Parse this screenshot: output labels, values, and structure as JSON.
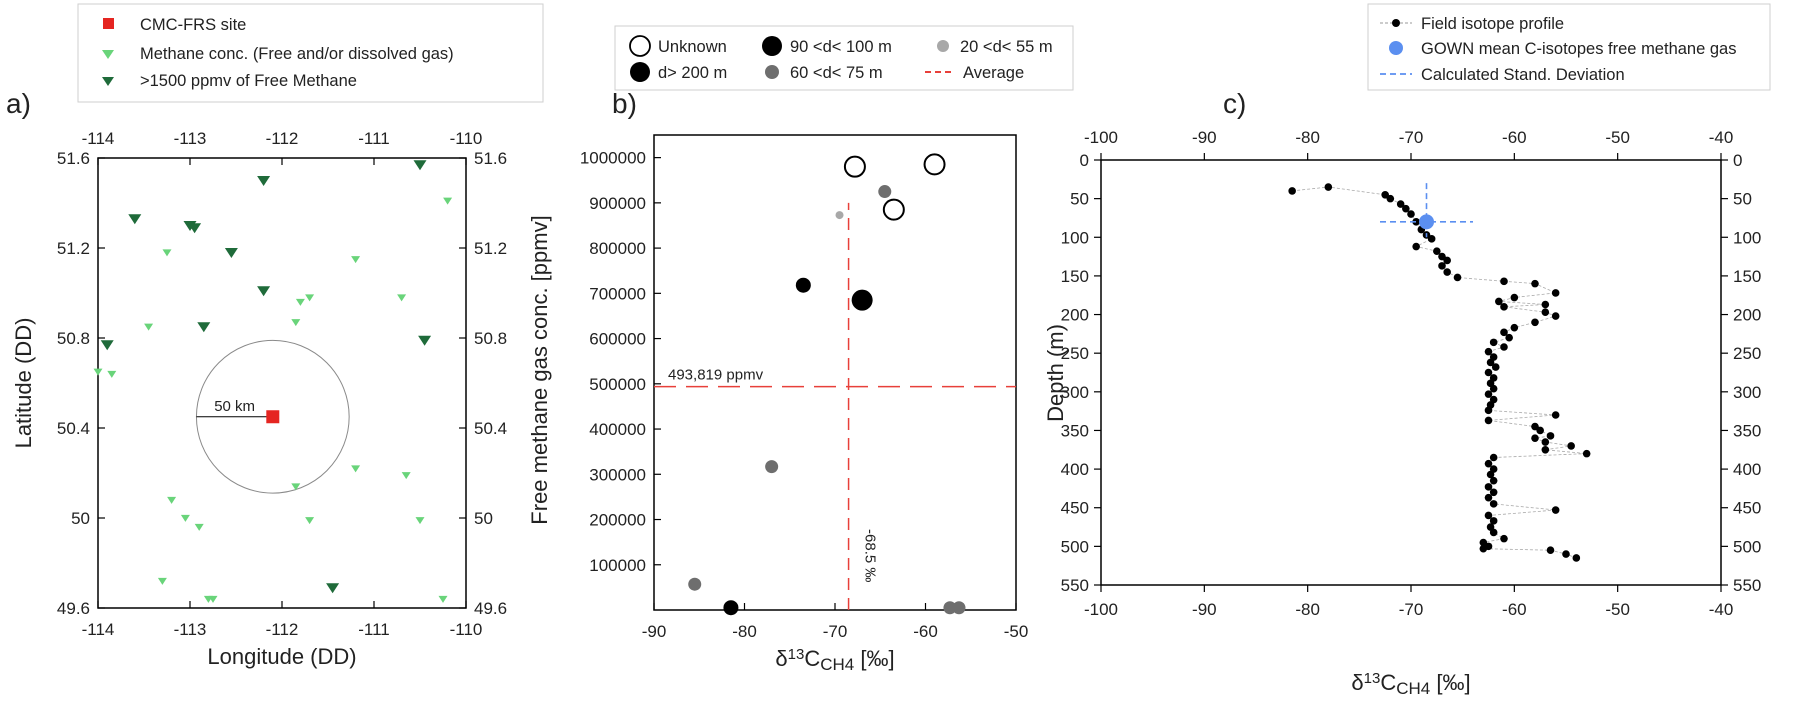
{
  "panels": {
    "a": {
      "label": "a)"
    },
    "b": {
      "label": "b)"
    },
    "c": {
      "label": "c)"
    }
  },
  "colors": {
    "site": "#e52521",
    "light_green": "#69d47a",
    "dark_green": "#1f6b3a",
    "average": "#e8403a",
    "unknown": "#000000",
    "d_gt_200": "#000000",
    "d_90_100": "#000000",
    "d_60_75": "#6e6e6e",
    "d_20_55": "#a8a8a8",
    "field_profile": "#000000",
    "gown": "#5b8ff0",
    "stdev": "#5b8ff0"
  },
  "chart_data": [
    {
      "id": "a",
      "type": "scatter",
      "xlabel": "Longitude (DD)",
      "ylabel": "Latitude (DD)",
      "xlim": [
        -114,
        -110
      ],
      "ylim": [
        49.6,
        51.6
      ],
      "xticks": [
        -114,
        -113,
        -112,
        -111,
        -110
      ],
      "xtick_labels": [
        "-114",
        "-113",
        "-112",
        "-111",
        "-110"
      ],
      "yticks": [
        49.6,
        50,
        50.4,
        50.8,
        51.2,
        51.6
      ],
      "ytick_labels": [
        "49.6",
        "50",
        "50.4",
        "50.8",
        "51.2",
        "51.6"
      ],
      "legend": {
        "position": "top",
        "entries": [
          {
            "label": "CMC-FRS site",
            "marker": "square",
            "color": "#e52521"
          },
          {
            "label": "Methane conc. (Free and/or dissolved gas)",
            "marker": "triangle-down",
            "color": "#69d47a"
          },
          {
            "label": ">1500 ppmv of Free Methane",
            "marker": "triangle-down",
            "color": "#1f6b3a"
          }
        ]
      },
      "site": {
        "x": -112.1,
        "y": 50.45
      },
      "radius_annotation": "50 km",
      "radius_deg": 0.83,
      "series": [
        {
          "name": "Methane conc. (Free and/or dissolved gas)",
          "points": [
            [
              -113.25,
              51.18
            ],
            [
              -111.2,
              51.15
            ],
            [
              -110.2,
              51.41
            ],
            [
              -111.7,
              50.98
            ],
            [
              -111.8,
              50.96
            ],
            [
              -110.7,
              50.98
            ],
            [
              -111.85,
              50.87
            ],
            [
              -113.45,
              50.85
            ],
            [
              -114.0,
              50.65
            ],
            [
              -113.85,
              50.64
            ],
            [
              -111.2,
              50.22
            ],
            [
              -110.65,
              50.19
            ],
            [
              -113.2,
              50.08
            ],
            [
              -111.85,
              50.14
            ],
            [
              -113.05,
              50.0
            ],
            [
              -112.9,
              49.96
            ],
            [
              -111.7,
              49.99
            ],
            [
              -110.5,
              49.99
            ],
            [
              -113.3,
              49.72
            ],
            [
              -112.8,
              49.64
            ],
            [
              -112.75,
              49.64
            ],
            [
              -110.25,
              49.64
            ]
          ]
        },
        {
          "name": ">1500 ppmv of Free Methane",
          "points": [
            [
              -110.5,
              51.57
            ],
            [
              -112.2,
              51.5
            ],
            [
              -113.6,
              51.33
            ],
            [
              -113.0,
              51.3
            ],
            [
              -112.95,
              51.29
            ],
            [
              -112.55,
              51.18
            ],
            [
              -112.2,
              51.01
            ],
            [
              -112.85,
              50.85
            ],
            [
              -113.9,
              50.77
            ],
            [
              -110.45,
              50.79
            ],
            [
              -111.45,
              49.69
            ]
          ]
        }
      ]
    },
    {
      "id": "b",
      "type": "scatter",
      "xlabel_base": "δ",
      "xlabel_sup": "13",
      "xlabel_main": "C",
      "xlabel_sub": "CH4",
      "xlabel_unit": " [‰]",
      "ylabel": "Free methane gas conc. [ppmv]",
      "xlim": [
        -90,
        -50
      ],
      "ylim": [
        0,
        1050000
      ],
      "xticks": [
        -90,
        -80,
        -70,
        -60,
        -50
      ],
      "xtick_labels": [
        "-90",
        "-80",
        "-70",
        "-60",
        "-50"
      ],
      "yticks": [
        100000,
        200000,
        300000,
        400000,
        500000,
        600000,
        700000,
        800000,
        900000,
        1000000
      ],
      "ytick_labels": [
        "100000",
        "200000",
        "300000",
        "400000",
        "500000",
        "600000",
        "700000",
        "800000",
        "900000",
        "1000000"
      ],
      "legend": {
        "position": "top",
        "entries": [
          {
            "label": "Unknown",
            "marker": "open-circle",
            "color": "#000000"
          },
          {
            "label": "90 <d< 100 m",
            "marker": "circle",
            "color": "#000000"
          },
          {
            "label": "20 <d< 55 m",
            "marker": "circle",
            "color": "#a8a8a8"
          },
          {
            "label": "d> 200 m",
            "marker": "circle",
            "color": "#000000"
          },
          {
            "label": "60 <d< 75 m",
            "marker": "circle",
            "color": "#6e6e6e"
          },
          {
            "label": "Average",
            "marker": "dashed-line",
            "color": "#e8403a"
          }
        ]
      },
      "average_x": -68.5,
      "average_y": 493819,
      "annotations": {
        "y_average": "493,819 ppmv",
        "x_average": "-68.5 ‰"
      },
      "series": [
        {
          "name": "Unknown",
          "points": [
            [
              -67.8,
              980000
            ],
            [
              -59,
              985000
            ],
            [
              -63.5,
              885000
            ]
          ]
        },
        {
          "name": "d> 200 m",
          "points": [
            [
              -67,
              685000
            ]
          ]
        },
        {
          "name": "90 <d< 100 m",
          "points": [
            [
              -73.5,
              718000
            ],
            [
              -81.5,
              5000
            ]
          ]
        },
        {
          "name": "60 <d< 75 m",
          "points": [
            [
              -64.5,
              925000
            ],
            [
              -77,
              317000
            ],
            [
              -85.5,
              57000
            ],
            [
              -57.3,
              5000
            ],
            [
              -56.3,
              5000
            ]
          ]
        },
        {
          "name": "20 <d< 55 m",
          "points": [
            [
              -69.5,
              873000
            ]
          ]
        }
      ]
    },
    {
      "id": "c",
      "type": "line",
      "xlabel_base": "δ",
      "xlabel_sup": "13",
      "xlabel_main": "C",
      "xlabel_sub": "CH4",
      "xlabel_unit": " [‰]",
      "ylabel": "Depth (m)",
      "xlim": [
        -100,
        -40
      ],
      "ylim": [
        550,
        0
      ],
      "xticks": [
        -100,
        -90,
        -80,
        -70,
        -60,
        -50,
        -40
      ],
      "xtick_labels": [
        "-100",
        "-90",
        "-80",
        "-70",
        "-60",
        "-50",
        "-40"
      ],
      "yticks": [
        0,
        50,
        100,
        150,
        200,
        250,
        300,
        350,
        400,
        450,
        500,
        550
      ],
      "ytick_labels": [
        "0",
        "50",
        "100",
        "150",
        "200",
        "250",
        "300",
        "350",
        "400",
        "450",
        "500",
        "550"
      ],
      "legend": {
        "position": "top",
        "entries": [
          {
            "label": "Field isotope profile",
            "marker": "dot-line",
            "color": "#000000"
          },
          {
            "label": "GOWN mean C-isotopes free methane gas",
            "marker": "circle",
            "color": "#5b8ff0"
          },
          {
            "label": "Calculated Stand. Deviation",
            "marker": "dashed-line",
            "color": "#5b8ff0"
          }
        ]
      },
      "gown_mean": {
        "x": -68.5,
        "y": 80
      },
      "stdev": {
        "x_range": [
          -73,
          -64
        ],
        "y_range": [
          30,
          100
        ]
      },
      "profile": [
        [
          -81.5,
          40
        ],
        [
          -78,
          35
        ],
        [
          -72.5,
          45
        ],
        [
          -72,
          50
        ],
        [
          -71,
          57
        ],
        [
          -70.5,
          63
        ],
        [
          -70,
          70
        ],
        [
          -69.5,
          80
        ],
        [
          -69,
          90
        ],
        [
          -68.5,
          97
        ],
        [
          -68,
          102
        ],
        [
          -69.5,
          112
        ],
        [
          -67.5,
          118
        ],
        [
          -67,
          125
        ],
        [
          -66.5,
          130
        ],
        [
          -67,
          137
        ],
        [
          -66.5,
          145
        ],
        [
          -65.5,
          152
        ],
        [
          -61,
          157
        ],
        [
          -58,
          160
        ],
        [
          -56,
          172
        ],
        [
          -60,
          178
        ],
        [
          -61.5,
          183
        ],
        [
          -57,
          187
        ],
        [
          -61,
          190
        ],
        [
          -57,
          197
        ],
        [
          -56,
          202
        ],
        [
          -58,
          210
        ],
        [
          -60,
          217
        ],
        [
          -61,
          223
        ],
        [
          -60.5,
          230
        ],
        [
          -62,
          236
        ],
        [
          -61,
          242
        ],
        [
          -62.5,
          248
        ],
        [
          -62,
          255
        ],
        [
          -62.3,
          262
        ],
        [
          -61.8,
          268
        ],
        [
          -62.5,
          275
        ],
        [
          -62,
          282
        ],
        [
          -62.3,
          289
        ],
        [
          -62,
          296
        ],
        [
          -62.5,
          303
        ],
        [
          -62,
          310
        ],
        [
          -62.3,
          317
        ],
        [
          -62.5,
          324
        ],
        [
          -56,
          330
        ],
        [
          -62.5,
          337
        ],
        [
          -58,
          345
        ],
        [
          -57.5,
          350
        ],
        [
          -56.5,
          357
        ],
        [
          -58,
          360
        ],
        [
          -57,
          365
        ],
        [
          -54.5,
          370
        ],
        [
          -57,
          375
        ],
        [
          -53,
          380
        ],
        [
          -62,
          385
        ],
        [
          -62.5,
          393
        ],
        [
          -62,
          400
        ],
        [
          -62.3,
          407
        ],
        [
          -62,
          415
        ],
        [
          -62.5,
          423
        ],
        [
          -62,
          430
        ],
        [
          -62.5,
          437
        ],
        [
          -62,
          445
        ],
        [
          -56,
          453
        ],
        [
          -62.5,
          460
        ],
        [
          -62,
          467
        ],
        [
          -62.3,
          475
        ],
        [
          -62,
          482
        ],
        [
          -61,
          490
        ],
        [
          -63,
          495
        ],
        [
          -62.5,
          500
        ],
        [
          -63,
          503
        ],
        [
          -56.5,
          505
        ],
        [
          -55,
          510
        ],
        [
          -54,
          515
        ]
      ]
    }
  ]
}
